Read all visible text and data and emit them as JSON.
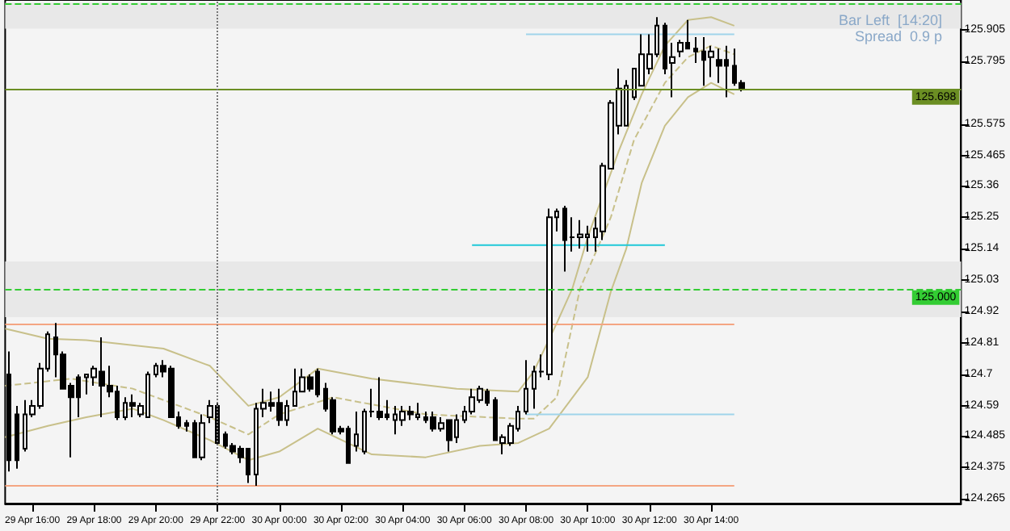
{
  "chart_data": {
    "type": "candlestick",
    "x": [
      "--04-29T15:15",
      "--04-29T15:30",
      "--04-29T15:45",
      "--04-29T16:00",
      "--04-29T16:15",
      "--04-29T16:30",
      "--04-29T16:45",
      "--04-29T17:00",
      "--04-29T17:15",
      "--04-29T17:30",
      "--04-29T17:45",
      "--04-29T18:00",
      "--04-29T18:15",
      "--04-29T18:30",
      "--04-29T18:45",
      "--04-29T19:00",
      "--04-29T19:15",
      "--04-29T19:30",
      "--04-29T19:45",
      "--04-29T20:00",
      "--04-29T20:15",
      "--04-29T20:30",
      "--04-29T20:45",
      "--04-29T21:00",
      "--04-29T21:15",
      "--04-29T21:30",
      "--04-29T21:45",
      "--04-29T22:00",
      "--04-29T22:15",
      "--04-29T22:30",
      "--04-29T22:45",
      "--04-29T23:00",
      "--04-29T23:15",
      "--04-29T23:30",
      "--04-29T23:45",
      "--04-30T00:00",
      "--04-30T00:15",
      "--04-30T00:30",
      "--04-30T00:45",
      "--04-30T01:00",
      "--04-30T01:15",
      "--04-30T01:30",
      "--04-30T01:45",
      "--04-30T02:00",
      "--04-30T02:15",
      "--04-30T02:30",
      "--04-30T02:45",
      "--04-30T03:00",
      "--04-30T03:15",
      "--04-30T03:30",
      "--04-30T03:45",
      "--04-30T04:00",
      "--04-30T04:15",
      "--04-30T04:30",
      "--04-30T04:45",
      "--04-30T05:00",
      "--04-30T05:15",
      "--04-30T05:30",
      "--04-30T05:45",
      "--04-30T06:00",
      "--04-30T06:15",
      "--04-30T06:30",
      "--04-30T06:45",
      "--04-30T07:00",
      "--04-30T07:15",
      "--04-30T07:30",
      "--04-30T07:45",
      "--04-30T08:00",
      "--04-30T08:15",
      "--04-30T08:30",
      "--04-30T08:45",
      "--04-30T09:00",
      "--04-30T09:15",
      "--04-30T09:30",
      "--04-30T09:45",
      "--04-30T10:00",
      "--04-30T10:15",
      "--04-30T10:30",
      "--04-30T10:45",
      "--04-30T11:00",
      "--04-30T11:15",
      "--04-30T11:30",
      "--04-30T11:45",
      "--04-30T12:00",
      "--04-30T12:15",
      "--04-30T12:30",
      "--04-30T12:45",
      "--04-30T13:00",
      "--04-30T13:15",
      "--04-30T13:30",
      "--04-30T13:45",
      "--04-30T14:00",
      "--04-30T14:15",
      "--04-30T14:30",
      "--04-30T14:45",
      "--04-30T15:00"
    ],
    "ohlc": [
      [
        124.7,
        124.78,
        124.36,
        124.4
      ],
      [
        124.56,
        124.59,
        124.37,
        124.4
      ],
      [
        124.44,
        124.61,
        124.43,
        124.56
      ],
      [
        124.56,
        124.61,
        124.55,
        124.59
      ],
      [
        124.59,
        124.74,
        124.58,
        124.72
      ],
      [
        124.72,
        124.85,
        124.71,
        124.84
      ],
      [
        124.83,
        124.88,
        124.69,
        124.77
      ],
      [
        124.77,
        124.78,
        124.65,
        124.65
      ],
      [
        124.66,
        124.67,
        124.41,
        124.62
      ],
      [
        124.69,
        124.7,
        124.55,
        124.62
      ],
      [
        124.69,
        124.7,
        124.63,
        124.7
      ],
      [
        124.69,
        124.73,
        124.66,
        124.72
      ],
      [
        124.71,
        124.83,
        124.55,
        124.66
      ],
      [
        124.66,
        124.73,
        124.62,
        124.64
      ],
      [
        124.64,
        124.66,
        124.54,
        124.55
      ],
      [
        124.55,
        124.62,
        124.54,
        124.6
      ],
      [
        124.6,
        124.63,
        124.55,
        124.59
      ],
      [
        124.56,
        124.6,
        124.55,
        124.59
      ],
      [
        124.55,
        124.71,
        124.55,
        124.7
      ],
      [
        124.7,
        124.74,
        124.69,
        124.73
      ],
      [
        124.73,
        124.75,
        124.69,
        124.71
      ],
      [
        124.72,
        124.73,
        124.55,
        124.55
      ],
      [
        124.55,
        124.57,
        124.51,
        124.52
      ],
      [
        124.53,
        124.54,
        124.5,
        124.52
      ],
      [
        124.53,
        124.54,
        124.41,
        124.41
      ],
      [
        124.41,
        124.56,
        124.4,
        124.53
      ],
      [
        124.55,
        124.61,
        124.53,
        124.59
      ],
      [
        124.59,
        124.6,
        124.46,
        124.46
      ],
      [
        124.49,
        124.5,
        124.44,
        124.45
      ],
      [
        124.45,
        124.46,
        124.42,
        124.43
      ],
      [
        124.44,
        124.45,
        124.39,
        124.41
      ],
      [
        124.44,
        124.44,
        124.32,
        124.35
      ],
      [
        124.35,
        124.6,
        124.31,
        124.58
      ],
      [
        124.58,
        124.65,
        124.55,
        124.6
      ],
      [
        124.6,
        124.64,
        124.57,
        124.59
      ],
      [
        124.6,
        124.65,
        124.52,
        124.54
      ],
      [
        124.54,
        124.61,
        124.52,
        124.59
      ],
      [
        124.59,
        124.72,
        124.59,
        124.64
      ],
      [
        124.64,
        124.72,
        124.64,
        124.69
      ],
      [
        124.69,
        124.7,
        124.64,
        124.65
      ],
      [
        124.71,
        124.72,
        124.62,
        124.63
      ],
      [
        124.65,
        124.67,
        124.57,
        124.58
      ],
      [
        124.61,
        124.62,
        124.49,
        124.5
      ],
      [
        124.51,
        124.52,
        124.49,
        124.5
      ],
      [
        124.51,
        124.52,
        124.39,
        124.39
      ],
      [
        124.45,
        124.57,
        124.43,
        124.49
      ],
      [
        124.43,
        124.58,
        124.42,
        124.57
      ],
      [
        124.57,
        124.65,
        124.55,
        124.57
      ],
      [
        124.57,
        124.69,
        124.54,
        124.55
      ],
      [
        124.56,
        124.61,
        124.54,
        124.55
      ],
      [
        124.54,
        124.59,
        124.49,
        124.56
      ],
      [
        124.54,
        124.59,
        124.52,
        124.57
      ],
      [
        124.57,
        124.59,
        124.54,
        124.56
      ],
      [
        124.55,
        124.6,
        124.54,
        124.56
      ],
      [
        124.55,
        124.57,
        124.53,
        124.54
      ],
      [
        124.55,
        124.57,
        124.5,
        124.51
      ],
      [
        124.51,
        124.55,
        124.5,
        124.53
      ],
      [
        124.54,
        124.54,
        124.43,
        124.47
      ],
      [
        124.48,
        124.56,
        124.46,
        124.54
      ],
      [
        124.54,
        124.59,
        124.53,
        124.57
      ],
      [
        124.57,
        124.65,
        124.56,
        124.62
      ],
      [
        124.61,
        124.66,
        124.6,
        124.65
      ],
      [
        124.64,
        124.65,
        124.59,
        124.6
      ],
      [
        124.61,
        124.62,
        124.47,
        124.47
      ],
      [
        124.46,
        124.49,
        124.42,
        124.48
      ],
      [
        124.46,
        124.53,
        124.45,
        124.52
      ],
      [
        124.51,
        124.59,
        124.5,
        124.57
      ],
      [
        124.57,
        124.75,
        124.56,
        124.65
      ],
      [
        124.65,
        124.73,
        124.58,
        124.71
      ],
      [
        124.71,
        124.77,
        124.69,
        124.71
      ],
      [
        124.7,
        125.28,
        124.68,
        125.25
      ],
      [
        125.25,
        125.28,
        125.2,
        125.27
      ],
      [
        125.28,
        125.29,
        125.06,
        125.17
      ],
      [
        125.18,
        125.25,
        125.13,
        125.18
      ],
      [
        125.18,
        125.24,
        125.14,
        125.19
      ],
      [
        125.18,
        125.22,
        125.13,
        125.19
      ],
      [
        125.18,
        125.25,
        125.13,
        125.21
      ],
      [
        125.2,
        125.44,
        125.17,
        125.43
      ],
      [
        125.42,
        125.66,
        125.42,
        125.65
      ],
      [
        125.57,
        125.77,
        125.54,
        125.7
      ],
      [
        125.57,
        125.73,
        125.57,
        125.71
      ],
      [
        125.67,
        125.77,
        125.66,
        125.77
      ],
      [
        125.71,
        125.89,
        125.71,
        125.82
      ],
      [
        125.77,
        125.89,
        125.75,
        125.82
      ],
      [
        125.82,
        125.95,
        125.81,
        125.92
      ],
      [
        125.92,
        125.93,
        125.75,
        125.77
      ],
      [
        125.79,
        125.86,
        125.67,
        125.81
      ],
      [
        125.83,
        125.87,
        125.81,
        125.86
      ],
      [
        125.86,
        125.94,
        125.84,
        125.84
      ],
      [
        125.84,
        125.88,
        125.79,
        125.83
      ],
      [
        125.83,
        125.88,
        125.71,
        125.8
      ],
      [
        125.81,
        125.85,
        125.74,
        125.83
      ],
      [
        125.8,
        125.84,
        125.72,
        125.78
      ],
      [
        125.8,
        125.85,
        125.67,
        125.78
      ],
      [
        125.78,
        125.84,
        125.71,
        125.72
      ],
      [
        125.72,
        125.73,
        125.69,
        125.7
      ]
    ],
    "series": [
      {
        "type": "line",
        "color": "#c8c08a",
        "line_style": "solid",
        "x": [
          "--04-29T15:07",
          "--04-29T16:30",
          "--04-29T17:45",
          "--04-29T20:15",
          "--04-29T21:45",
          "--04-29T23:00",
          "--04-30T00:00",
          "--04-30T01:15",
          "--04-30T03:00",
          "--04-30T05:45",
          "--04-30T07:45",
          "--04-30T08:15",
          "--04-30T09:00",
          "--04-30T09:30",
          "--04-30T10:00",
          "--04-30T11:00",
          "--04-30T11:45",
          "--04-30T12:30",
          "--04-30T13:15",
          "--04-30T14:00",
          "--04-30T14:45"
        ],
        "values": [
          124.86,
          124.825,
          124.82,
          124.79,
          124.73,
          124.59,
          124.62,
          124.72,
          124.685,
          124.65,
          124.64,
          124.71,
          124.88,
          125.0,
          125.18,
          125.48,
          125.68,
          125.85,
          125.94,
          125.95,
          125.92
        ]
      },
      {
        "type": "line",
        "color": "#c8c08a",
        "line_style": "dashed",
        "x": [
          "--04-29T15:07",
          "--04-29T17:15",
          "--04-29T19:15",
          "--04-29T21:45",
          "--04-29T23:00",
          "--04-30T00:00",
          "--04-30T01:45",
          "--04-30T04:45",
          "--04-30T07:45",
          "--04-30T08:15",
          "--04-30T09:00",
          "--04-30T09:45",
          "--04-30T10:45",
          "--04-30T11:30",
          "--04-30T12:30",
          "--04-30T13:15",
          "--04-30T14:00",
          "--04-30T14:45"
        ],
        "values": [
          124.66,
          124.685,
          124.65,
          124.55,
          124.49,
          124.56,
          124.62,
          124.56,
          124.545,
          124.545,
          124.62,
          125.0,
          125.25,
          125.52,
          125.72,
          125.81,
          125.85,
          125.82
        ]
      },
      {
        "type": "line",
        "color": "#c8c08a",
        "line_style": "solid",
        "x": [
          "--04-29T15:07",
          "--04-29T16:30",
          "--04-29T17:45",
          "--04-29T19:15",
          "--04-29T20:15",
          "--04-29T21:45",
          "--04-29T23:00",
          "--04-30T00:00",
          "--04-30T01:15",
          "--04-30T03:00",
          "--04-30T04:45",
          "--04-30T06:30",
          "--04-30T07:45",
          "--04-30T08:45",
          "--04-30T10:00",
          "--04-30T10:45",
          "--04-30T11:15",
          "--04-30T11:45",
          "--04-30T12:30",
          "--04-30T13:15",
          "--04-30T14:00",
          "--04-30T14:45"
        ],
        "values": [
          124.48,
          124.52,
          124.55,
          124.58,
          124.54,
          124.47,
          124.4,
          124.43,
          124.51,
          124.42,
          124.41,
          124.45,
          124.46,
          124.51,
          124.69,
          124.99,
          125.14,
          125.37,
          125.57,
          125.67,
          125.72,
          125.68
        ]
      },
      {
        "type": "line",
        "color": "#f4a582",
        "line_style": "solid",
        "x": [
          "--04-29T15:07",
          "--04-30T14:45"
        ],
        "values": [
          124.875,
          124.875
        ]
      },
      {
        "type": "line",
        "color": "#f4a582",
        "line_style": "solid",
        "x": [
          "--04-29T15:07",
          "--04-30T14:45"
        ],
        "values": [
          124.31,
          124.31
        ]
      },
      {
        "type": "line",
        "color": "#9fd4ea",
        "line_style": "solid",
        "x": [
          "--04-30T08:00",
          "--04-30T14:45"
        ],
        "values": [
          125.89,
          125.89
        ]
      },
      {
        "type": "line",
        "color": "#9fd4ea",
        "line_style": "solid",
        "x": [
          "--04-30T08:00",
          "--04-30T14:45"
        ],
        "values": [
          124.56,
          124.56
        ]
      },
      {
        "type": "line",
        "color": "#1ec8d8",
        "line_style": "solid",
        "x": [
          "--04-30T06:15",
          "--04-30T12:30"
        ],
        "values": [
          125.152,
          125.152
        ]
      }
    ],
    "xlim": [
      "--04-29T15:07",
      "--04-30T22:06"
    ],
    "xticks": [
      {
        "value": "--04-29T16:00",
        "label": "29 Apr 16:00"
      },
      {
        "value": "--04-29T18:00",
        "label": "29 Apr 18:00"
      },
      {
        "value": "--04-29T20:00",
        "label": "29 Apr 20:00"
      },
      {
        "value": "--04-29T22:00",
        "label": "29 Apr 22:00"
      },
      {
        "value": "--04-30T00:00",
        "label": "30 Apr 00:00"
      },
      {
        "value": "--04-30T02:00",
        "label": "30 Apr 02:00"
      },
      {
        "value": "--04-30T04:00",
        "label": "30 Apr 04:00"
      },
      {
        "value": "--04-30T06:00",
        "label": "30 Apr 06:00"
      },
      {
        "value": "--04-30T08:00",
        "label": "30 Apr 08:00"
      },
      {
        "value": "--04-30T10:00",
        "label": "30 Apr 10:00"
      },
      {
        "value": "--04-30T12:00",
        "label": "30 Apr 12:00"
      },
      {
        "value": "--04-30T14:00",
        "label": "30 Apr 14:00"
      }
    ],
    "ylim": [
      124.248,
      126.01
    ],
    "yticks": [
      124.265,
      124.375,
      124.485,
      124.59,
      124.7,
      124.81,
      124.92,
      125.03,
      125.14,
      125.25,
      125.36,
      125.465,
      125.575,
      125.795,
      125.905
    ],
    "ref_lines": [
      {
        "axis": "y",
        "value": 125.698,
        "label": "125.698",
        "color": "#6b8e23",
        "line_style": "solid"
      },
      {
        "axis": "y",
        "value": 125.0,
        "label": "125.000",
        "color": "#33cc33",
        "line_style": "dashed"
      },
      {
        "axis": "y",
        "value": 126.0,
        "label": null,
        "color": "#33cc33",
        "line_style": "dashed"
      },
      {
        "axis": "x",
        "value": "--04-29T22:00",
        "label": null,
        "color": "#777777",
        "line_style": "dotted"
      }
    ],
    "bands": [
      {
        "axis": "y",
        "from": 124.9,
        "to": 125.095,
        "label": null,
        "color": "#e8e8e8"
      },
      {
        "axis": "y",
        "from": 125.91,
        "to": 126.0,
        "label": null,
        "color": "#e8e8e8"
      }
    ],
    "annotations": [
      "Bar Left  [14:20]",
      "Spread  0.9 p"
    ],
    "grid": false
  }
}
